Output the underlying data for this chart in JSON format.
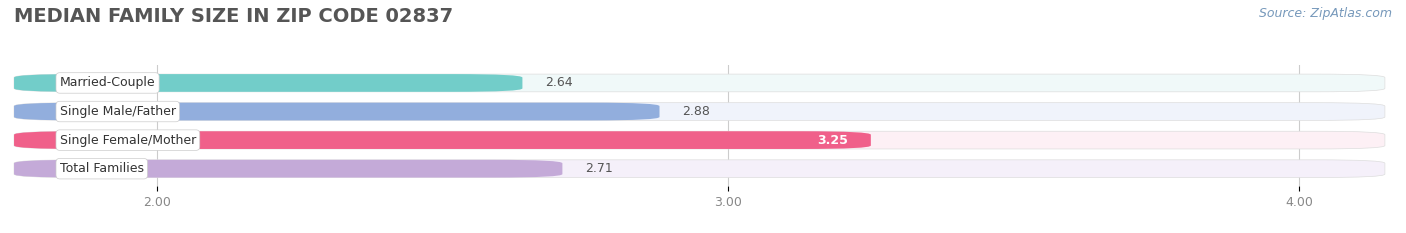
{
  "title": "MEDIAN FAMILY SIZE IN ZIP CODE 02837",
  "source": "Source: ZipAtlas.com",
  "categories": [
    "Married-Couple",
    "Single Male/Father",
    "Single Female/Mother",
    "Total Families"
  ],
  "values": [
    2.64,
    2.88,
    3.25,
    2.71
  ],
  "bar_colors": [
    "#72cdc9",
    "#92aedd",
    "#f0608a",
    "#c4aad8"
  ],
  "bar_bg_colors": [
    "#f0f9f9",
    "#f0f3fb",
    "#fdf0f5",
    "#f5f0fa"
  ],
  "xlim_data": [
    1.75,
    4.15
  ],
  "xlim_display": [
    1.75,
    4.15
  ],
  "xticks": [
    2.0,
    3.0,
    4.0
  ],
  "xtick_labels": [
    "2.00",
    "3.00",
    "4.00"
  ],
  "background_color": "#ffffff",
  "bar_height": 0.62,
  "bar_gap": 0.38,
  "title_fontsize": 14,
  "label_fontsize": 9,
  "value_fontsize": 9,
  "source_fontsize": 9
}
